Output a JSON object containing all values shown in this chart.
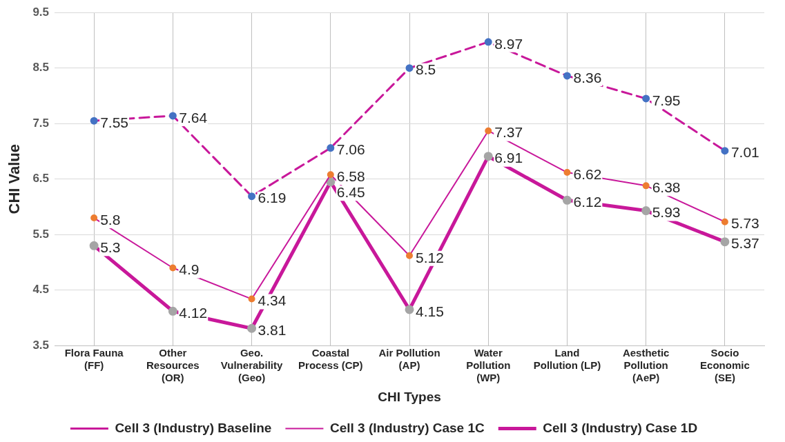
{
  "chart_data": {
    "type": "line",
    "xlabel": "CHI Types",
    "ylabel": "CHI Value",
    "categories": [
      "Flora Fauna (FF)",
      "Other Resources (OR)",
      "Geo. Vulnerability (Geo)",
      "Coastal Process (CP)",
      "Air Pollution (AP)",
      "Water Pollution (WP)",
      "Land Pollution (LP)",
      "Aesthetic Pollution (AeP)",
      "Socio Economic (SE)"
    ],
    "series": [
      {
        "name": "Cell 3 (Industry) Baseline",
        "color": "#c8189a",
        "line_style": "dashed",
        "colors": [
          "#4472c4",
          "#4472c4",
          "#4472c4",
          "#4472c4",
          "#4472c4",
          "#4472c4",
          "#4472c4",
          "#4472c4",
          "#4472c4"
        ],
        "values": [
          7.55,
          7.64,
          6.19,
          7.06,
          8.5,
          8.97,
          8.36,
          7.95,
          7.01
        ]
      },
      {
        "name": "Cell 3 (Industry) Case 1C",
        "color": "#c8189a",
        "line_style": "solid",
        "colors": [
          "#ed7d31",
          "#ed7d31",
          "#ed7d31",
          "#ed7d31",
          "#ed7d31",
          "#ed7d31",
          "#ed7d31",
          "#ed7d31",
          "#ed7d31"
        ],
        "values": [
          5.8,
          4.9,
          4.34,
          6.58,
          5.12,
          7.37,
          6.62,
          6.38,
          5.73
        ]
      },
      {
        "name": "Cell 3 (Industry) Case 1D",
        "color": "#c8189a",
        "line_style": "solid",
        "colors": [
          "#a5a5a5",
          "#a5a5a5",
          "#a5a5a5",
          "#a5a5a5",
          "#a5a5a5",
          "#a5a5a5",
          "#a5a5a5",
          "#a5a5a5",
          "#a5a5a5"
        ],
        "values": [
          5.3,
          4.12,
          3.81,
          6.45,
          4.15,
          6.91,
          6.12,
          5.93,
          5.37
        ]
      }
    ],
    "ylim": [
      3.5,
      9.5
    ],
    "yticks": [
      3.5,
      4.5,
      5.5,
      6.5,
      7.5,
      8.5,
      9.5
    ],
    "grid": true,
    "legend": "bottom",
    "marker": "circle",
    "data_labels": true
  }
}
